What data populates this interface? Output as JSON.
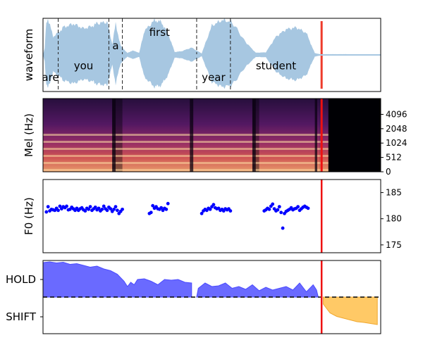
{
  "chart_data": [
    {
      "type": "area",
      "panel": "waveform",
      "ylabel": "waveform",
      "xlim": [
        0,
        1
      ],
      "ylim": [
        -1,
        1
      ],
      "color": "#a7c7e1",
      "envelope": {
        "x": [
          0.0,
          0.005,
          0.01,
          0.015,
          0.03,
          0.05,
          0.06,
          0.09,
          0.12,
          0.15,
          0.16,
          0.19,
          0.205,
          0.215,
          0.23,
          0.25,
          0.265,
          0.285,
          0.3,
          0.33,
          0.35,
          0.37,
          0.39,
          0.41,
          0.44,
          0.47,
          0.5,
          0.53,
          0.56,
          0.6,
          0.63,
          0.66,
          0.69,
          0.72,
          0.75,
          0.78,
          0.8,
          0.805,
          0.82,
          0.84,
          0.86,
          0.88,
          0.9,
          0.95,
          1.0
        ],
        "amp": [
          0.0,
          0.18,
          0.92,
          0.98,
          0.5,
          0.65,
          0.75,
          0.85,
          0.72,
          0.8,
          0.86,
          0.9,
          0.3,
          0.85,
          0.25,
          0.05,
          0.12,
          0.06,
          0.65,
          0.95,
          0.9,
          0.6,
          0.08,
          0.1,
          0.2,
          0.04,
          0.8,
          0.95,
          0.9,
          0.35,
          0.06,
          0.07,
          0.5,
          0.7,
          0.75,
          0.6,
          0.15,
          0.05,
          0.02,
          0.02,
          0.02,
          0.02,
          0.02,
          0.02,
          0.02
        ]
      },
      "boundaries": [
        0.045,
        0.195,
        0.235,
        0.455,
        0.555
      ],
      "current_position": 0.825,
      "words": [
        {
          "text": "are",
          "x": 0.022,
          "y": -0.62
        },
        {
          "text": "you",
          "x": 0.12,
          "y": -0.3
        },
        {
          "text": "a",
          "x": 0.215,
          "y": 0.25
        },
        {
          "text": "first",
          "x": 0.345,
          "y": 0.62
        },
        {
          "text": "year",
          "x": 0.505,
          "y": -0.62
        },
        {
          "text": "student",
          "x": 0.69,
          "y": -0.3
        }
      ]
    },
    {
      "type": "heatmap",
      "panel": "mel-spectrogram",
      "ylabel": "Mel (Hz)",
      "yticks": [
        "0",
        "512",
        "1024",
        "2048",
        "4096"
      ],
      "yaxis_side": "right",
      "colormap": "magma",
      "current_position": 0.825
    },
    {
      "type": "scatter",
      "panel": "f0",
      "ylabel": "F0 (Hz)",
      "yticks": [
        175,
        180,
        185
      ],
      "ylim": [
        173.5,
        187.5
      ],
      "yaxis_side": "right",
      "color": "#0000ff",
      "current_position": 0.825,
      "points": [
        [
          0.01,
          181.3
        ],
        [
          0.015,
          182.3
        ],
        [
          0.02,
          181.5
        ],
        [
          0.025,
          181.8
        ],
        [
          0.03,
          181.7
        ],
        [
          0.035,
          181.6
        ],
        [
          0.04,
          182.0
        ],
        [
          0.045,
          181.6
        ],
        [
          0.05,
          182.4
        ],
        [
          0.055,
          181.9
        ],
        [
          0.06,
          182.3
        ],
        [
          0.065,
          182.1
        ],
        [
          0.07,
          182.4
        ],
        [
          0.075,
          181.7
        ],
        [
          0.08,
          181.8
        ],
        [
          0.085,
          182.2
        ],
        [
          0.09,
          181.9
        ],
        [
          0.095,
          181.6
        ],
        [
          0.1,
          182.0
        ],
        [
          0.105,
          181.6
        ],
        [
          0.11,
          181.9
        ],
        [
          0.115,
          182.1
        ],
        [
          0.12,
          181.7
        ],
        [
          0.125,
          181.5
        ],
        [
          0.13,
          182.0
        ],
        [
          0.135,
          181.8
        ],
        [
          0.14,
          182.3
        ],
        [
          0.145,
          181.6
        ],
        [
          0.15,
          181.9
        ],
        [
          0.155,
          182.2
        ],
        [
          0.16,
          181.7
        ],
        [
          0.165,
          182.0
        ],
        [
          0.17,
          181.5
        ],
        [
          0.175,
          181.8
        ],
        [
          0.18,
          182.4
        ],
        [
          0.185,
          181.9
        ],
        [
          0.19,
          181.6
        ],
        [
          0.195,
          182.2
        ],
        [
          0.2,
          181.9
        ],
        [
          0.205,
          181.4
        ],
        [
          0.21,
          181.8
        ],
        [
          0.215,
          182.3
        ],
        [
          0.22,
          181.6
        ],
        [
          0.225,
          181.0
        ],
        [
          0.23,
          181.4
        ],
        [
          0.235,
          181.8
        ],
        [
          0.315,
          181.0
        ],
        [
          0.32,
          181.2
        ],
        [
          0.325,
          182.5
        ],
        [
          0.33,
          182.0
        ],
        [
          0.335,
          182.3
        ],
        [
          0.34,
          181.9
        ],
        [
          0.345,
          181.8
        ],
        [
          0.35,
          182.1
        ],
        [
          0.355,
          181.6
        ],
        [
          0.36,
          182.0
        ],
        [
          0.365,
          181.8
        ],
        [
          0.37,
          182.9
        ],
        [
          0.47,
          181.0
        ],
        [
          0.475,
          181.5
        ],
        [
          0.48,
          181.8
        ],
        [
          0.485,
          181.6
        ],
        [
          0.49,
          182.0
        ],
        [
          0.495,
          181.8
        ],
        [
          0.5,
          182.3
        ],
        [
          0.505,
          182.7
        ],
        [
          0.51,
          182.1
        ],
        [
          0.515,
          181.9
        ],
        [
          0.52,
          182.0
        ],
        [
          0.525,
          181.6
        ],
        [
          0.53,
          181.8
        ],
        [
          0.535,
          181.5
        ],
        [
          0.54,
          181.9
        ],
        [
          0.545,
          181.7
        ],
        [
          0.55,
          181.9
        ],
        [
          0.555,
          181.5
        ],
        [
          0.655,
          181.5
        ],
        [
          0.66,
          181.7
        ],
        [
          0.665,
          182.0
        ],
        [
          0.67,
          181.8
        ],
        [
          0.675,
          182.4
        ],
        [
          0.68,
          182.8
        ],
        [
          0.685,
          181.9
        ],
        [
          0.69,
          181.5
        ],
        [
          0.695,
          181.7
        ],
        [
          0.7,
          182.3
        ],
        [
          0.705,
          181.2
        ],
        [
          0.71,
          178.2
        ],
        [
          0.715,
          181.0
        ],
        [
          0.72,
          181.4
        ],
        [
          0.725,
          181.6
        ],
        [
          0.73,
          181.8
        ],
        [
          0.735,
          182.1
        ],
        [
          0.74,
          181.7
        ],
        [
          0.745,
          181.9
        ],
        [
          0.75,
          182.0
        ],
        [
          0.755,
          182.3
        ],
        [
          0.76,
          181.6
        ],
        [
          0.765,
          181.9
        ],
        [
          0.77,
          182.2
        ],
        [
          0.775,
          182.4
        ],
        [
          0.78,
          182.2
        ],
        [
          0.785,
          182.0
        ]
      ]
    },
    {
      "type": "area",
      "panel": "turn-taking",
      "yticks": [
        "HOLD",
        "SHIFT"
      ],
      "ylim": [
        -1,
        1
      ],
      "current_position": 0.825,
      "hold": {
        "color": "#6a6aff",
        "x": [
          0.0,
          0.02,
          0.04,
          0.06,
          0.08,
          0.1,
          0.12,
          0.14,
          0.16,
          0.18,
          0.2,
          0.22,
          0.24,
          0.25,
          0.26,
          0.27,
          0.28,
          0.3,
          0.32,
          0.34,
          0.36,
          0.38,
          0.4,
          0.42,
          0.44,
          0.44
        ],
        "y": [
          0.98,
          1.0,
          0.97,
          0.99,
          0.93,
          0.95,
          0.9,
          0.85,
          0.88,
          0.8,
          0.75,
          0.65,
          0.45,
          0.3,
          0.42,
          0.35,
          0.5,
          0.52,
          0.45,
          0.35,
          0.5,
          0.48,
          0.5,
          0.42,
          0.4,
          0.0
        ],
        "x2": [
          0.455,
          0.46,
          0.48,
          0.5,
          0.52,
          0.54,
          0.56,
          0.58,
          0.6,
          0.62,
          0.64,
          0.66,
          0.68,
          0.7,
          0.72,
          0.74,
          0.76,
          0.78,
          0.8,
          0.81,
          0.815
        ],
        "y2": [
          0.0,
          0.25,
          0.4,
          0.3,
          0.32,
          0.4,
          0.25,
          0.3,
          0.22,
          0.35,
          0.18,
          0.28,
          0.2,
          0.25,
          0.3,
          0.2,
          0.4,
          0.15,
          0.35,
          0.2,
          0.0
        ]
      },
      "shift": {
        "color": "#ffc966",
        "x": [
          0.83,
          0.85,
          0.87,
          0.89,
          0.91,
          0.93,
          0.95,
          0.97,
          0.99
        ],
        "y": [
          -0.2,
          -0.45,
          -0.55,
          -0.6,
          -0.65,
          -0.7,
          -0.72,
          -0.75,
          -0.78
        ]
      }
    }
  ]
}
